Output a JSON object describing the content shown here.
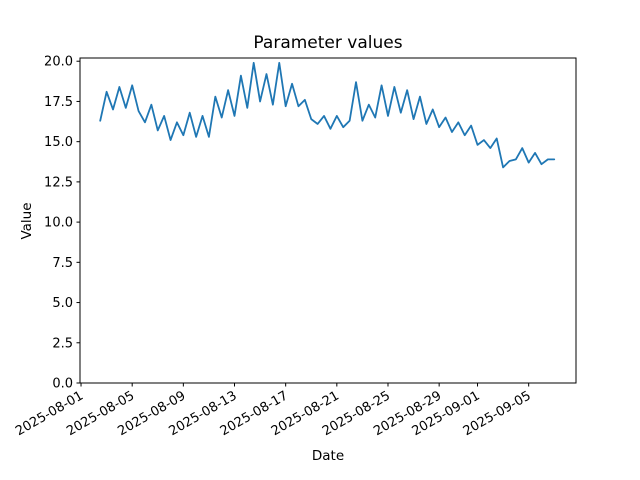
{
  "figure": {
    "title": "Parameter values",
    "xlabel": "Date",
    "ylabel": "Value",
    "background_color": "#ffffff",
    "axes_color": "#000000"
  },
  "chart_data": {
    "type": "line",
    "title": "Parameter values",
    "xlabel": "Date",
    "ylabel": "Value",
    "grid": false,
    "legend": "none",
    "series_name": "Parameter values",
    "series_color": "#1f77b4",
    "x_start_date": "2025-08-01",
    "x_unit": "days since 2025-08-01",
    "xlim_days": [
      -0.08,
      38.7
    ],
    "ylim": [
      0,
      20.2
    ],
    "x": [
      1.5,
      2.0,
      2.5,
      3.0,
      3.5,
      4.0,
      4.5,
      5.0,
      5.5,
      6.0,
      6.5,
      7.0,
      7.5,
      8.0,
      8.5,
      9.0,
      9.5,
      10.0,
      10.5,
      11.0,
      11.5,
      12.0,
      12.5,
      13.0,
      13.5,
      14.0,
      14.5,
      15.0,
      15.5,
      16.0,
      16.5,
      17.0,
      17.5,
      18.0,
      18.5,
      19.0,
      19.5,
      20.0,
      20.5,
      21.0,
      21.5,
      22.0,
      22.5,
      23.0,
      23.5,
      24.0,
      24.5,
      25.0,
      25.5,
      26.0,
      26.5,
      27.0,
      27.5,
      28.0,
      28.5,
      29.0,
      29.5,
      30.0,
      30.5,
      31.0,
      31.5,
      32.0,
      32.5,
      33.0,
      33.5,
      34.0,
      34.5,
      35.0,
      35.5,
      36.0,
      36.5,
      37.0
    ],
    "y": [
      16.3,
      18.1,
      17.0,
      18.4,
      17.1,
      18.5,
      16.9,
      16.2,
      17.3,
      15.7,
      16.6,
      15.1,
      16.2,
      15.4,
      16.8,
      15.3,
      16.6,
      15.3,
      17.8,
      16.5,
      18.2,
      16.6,
      19.1,
      17.1,
      19.9,
      17.5,
      19.2,
      17.3,
      19.9,
      17.2,
      18.6,
      17.2,
      17.6,
      16.4,
      16.1,
      16.6,
      15.8,
      16.6,
      15.9,
      16.3,
      18.7,
      16.3,
      17.3,
      16.5,
      18.5,
      16.6,
      18.4,
      16.8,
      18.2,
      16.4,
      17.8,
      16.1,
      17.0,
      15.9,
      16.5,
      15.6,
      16.2,
      15.4,
      16.0,
      14.8,
      15.1,
      14.6,
      15.2,
      13.4,
      13.8,
      13.9,
      14.6,
      13.7,
      14.3,
      13.6,
      13.9,
      13.9
    ],
    "x_ticks": [
      {
        "day": 0,
        "label": "2025-08-01"
      },
      {
        "day": 4,
        "label": "2025-08-05"
      },
      {
        "day": 8,
        "label": "2025-08-09"
      },
      {
        "day": 12,
        "label": "2025-08-13"
      },
      {
        "day": 16,
        "label": "2025-08-17"
      },
      {
        "day": 20,
        "label": "2025-08-21"
      },
      {
        "day": 24,
        "label": "2025-08-25"
      },
      {
        "day": 28,
        "label": "2025-08-29"
      },
      {
        "day": 31,
        "label": "2025-09-01"
      },
      {
        "day": 35,
        "label": "2025-09-05"
      }
    ],
    "y_ticks": [
      {
        "value": 0.0,
        "label": "0.0"
      },
      {
        "value": 2.5,
        "label": "2.5"
      },
      {
        "value": 5.0,
        "label": "5.0"
      },
      {
        "value": 7.5,
        "label": "7.5"
      },
      {
        "value": 10.0,
        "label": "10.0"
      },
      {
        "value": 12.5,
        "label": "12.5"
      },
      {
        "value": 15.0,
        "label": "15.0"
      },
      {
        "value": 17.5,
        "label": "17.5"
      },
      {
        "value": 20.0,
        "label": "20.0"
      }
    ],
    "x_tick_rotation_deg": 30
  }
}
